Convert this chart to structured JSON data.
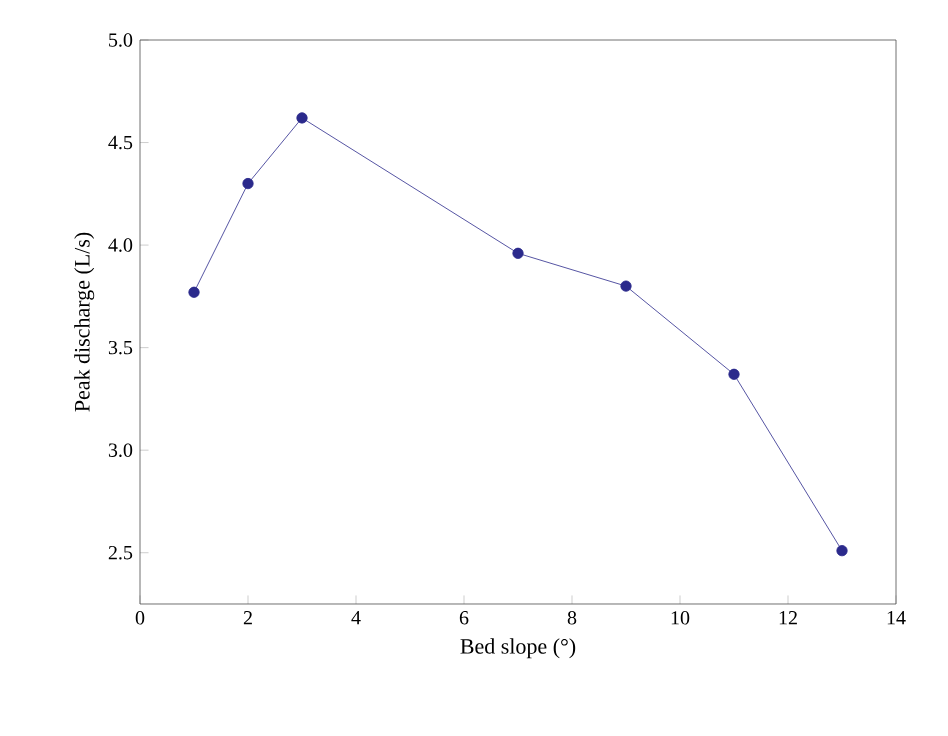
{
  "chart_data": {
    "type": "line",
    "xlabel": "Bed slope (°)",
    "ylabel": "Peak discharge (L/s)",
    "x": [
      1,
      2,
      3,
      7,
      9,
      11,
      13
    ],
    "series": [
      {
        "color": "#2b2a8c",
        "values": [
          3.77,
          4.3,
          4.62,
          3.96,
          3.8,
          3.37,
          2.51
        ]
      }
    ],
    "xlim": [
      0,
      14
    ],
    "ylim": [
      2.25,
      5.0
    ],
    "xticks": [
      0,
      2,
      4,
      6,
      8,
      10,
      12,
      14
    ],
    "yticks": [
      {
        "value": 2.5,
        "label": "2.5"
      },
      {
        "value": 3.0,
        "label": "3.0"
      },
      {
        "value": 3.5,
        "label": "3.5"
      },
      {
        "value": 4.0,
        "label": "4.0"
      },
      {
        "value": 4.5,
        "label": "4.5"
      },
      {
        "value": 5.0,
        "label": "5.0"
      }
    ],
    "marker": "circle",
    "line_style": "solid"
  }
}
